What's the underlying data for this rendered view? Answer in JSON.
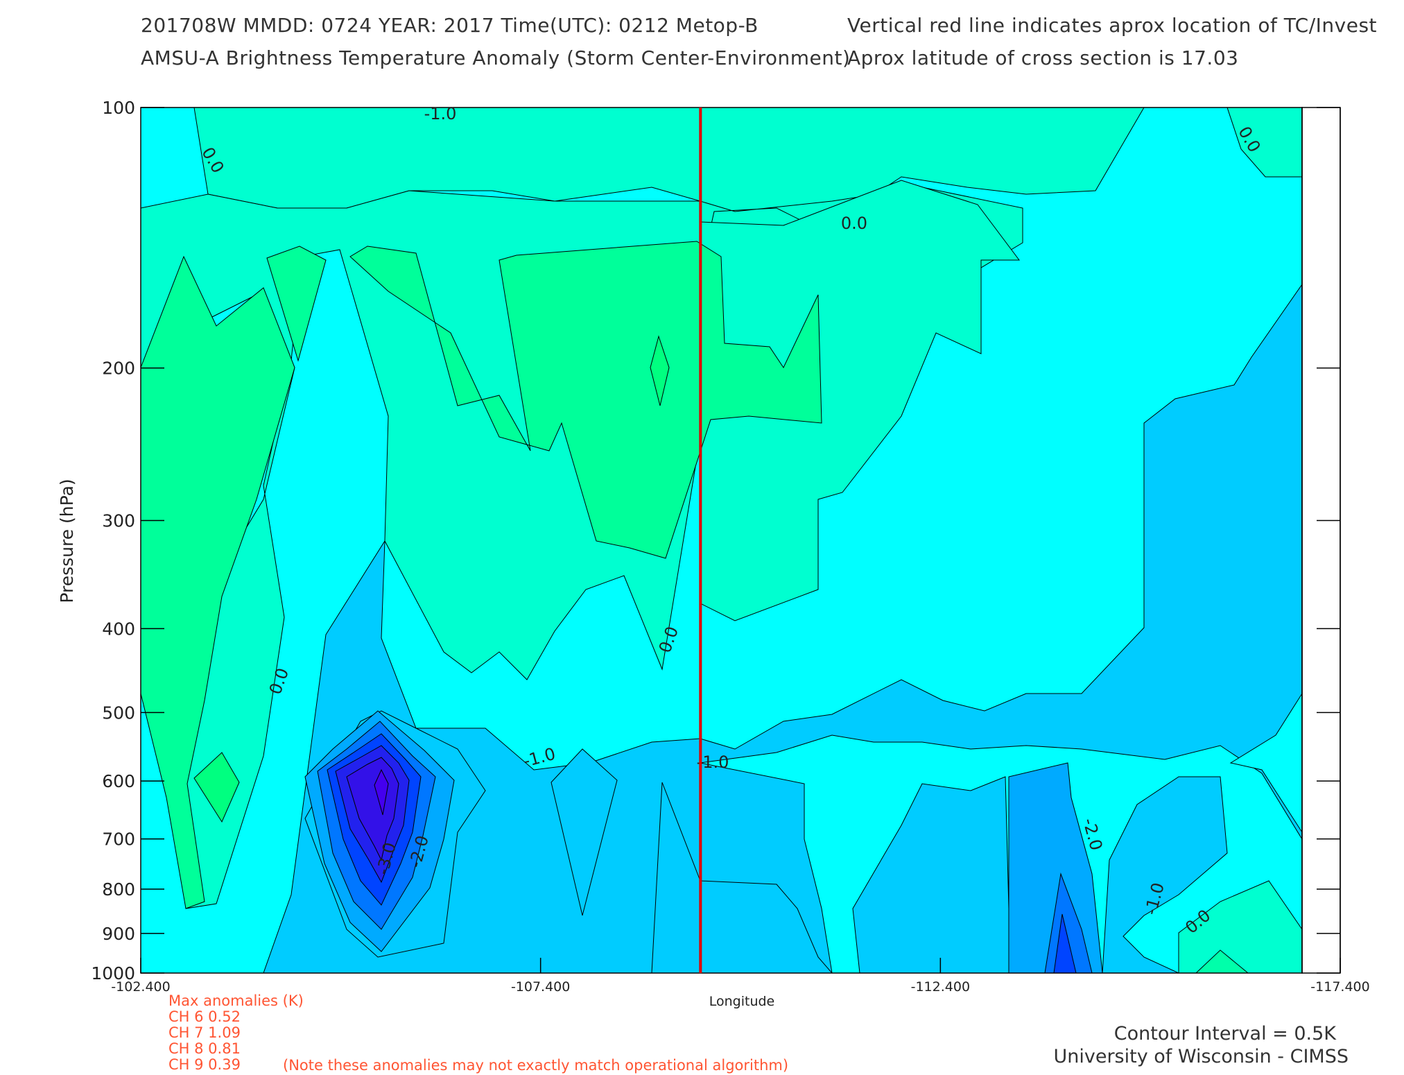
{
  "header": {
    "line1_left": "201708W  MMDD: 0724 YEAR: 2017 Time(UTC): 0212 Metop-B",
    "line2_left": "AMSU-A Brightness Temperature Anomaly (Storm Center-Environment)",
    "line1_right": "Vertical red line indicates aprox location of TC/Invest",
    "line2_right": "Aprox latitude of cross section is 17.03"
  },
  "chart_data": {
    "type": "heatmap",
    "xlabel": "Longitude",
    "ylabel": "Pressure (hPa)",
    "x_ticks": [
      "-102.400",
      "-107.400",
      "-112.400",
      "-117.400"
    ],
    "y_ticks": [
      "100",
      "200",
      "300",
      "400",
      "500",
      "600",
      "700",
      "800",
      "900",
      "1000"
    ],
    "xlim": [
      -102.4,
      -117.4
    ],
    "ylim": [
      100,
      1000
    ],
    "storm_longitude": -109.4,
    "contour_labels": [
      "-1.0",
      "0.0",
      "0.0",
      "0.0",
      "0.0",
      "0.0",
      "-1.0",
      "-1.0",
      "-2.0",
      "-3.0",
      "-2.0",
      "-1.0",
      "0.0"
    ],
    "colors": {
      "positive_strong": "#00ff80",
      "positive": "#00ffaa",
      "positive_weak": "#00ffd0",
      "near_zero": "#00ffff",
      "neg_0_5": "#00ccff",
      "neg_1_0": "#00aaff",
      "neg_1_5": "#0077ff",
      "neg_2_0": "#0044ff",
      "neg_2_5": "#2222ee",
      "neg_3_0": "#4400ee",
      "storm_line": "#e00000"
    }
  },
  "max_anomalies": {
    "title": "Max anomalies (K)",
    "rows": [
      {
        "label": "CH 6  0.52"
      },
      {
        "label": "CH 7  1.09"
      },
      {
        "label": "CH 8  0.81"
      },
      {
        "label": "CH 9  0.39"
      }
    ],
    "note": "(Note these anomalies may not exactly match operational algorithm)"
  },
  "footer": {
    "contour_interval": "Contour Interval = 0.5K",
    "credit": "University of Wisconsin - CIMSS"
  }
}
